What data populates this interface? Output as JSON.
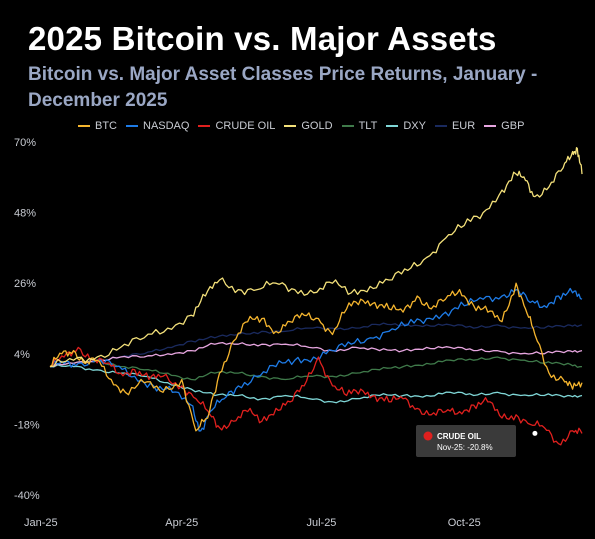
{
  "header": {
    "title": "2025 Bitcoin vs. Major Assets",
    "subtitle": "Bitcoin vs. Major Asset Classes Price Returns, January - December 2025"
  },
  "chart_data": {
    "type": "line",
    "title": "2025 Bitcoin vs. Major Assets",
    "subtitle": "Bitcoin vs. Major Asset Classes Price Returns, January - December 2025",
    "unit": "%",
    "ylim": [
      -40,
      70
    ],
    "yticks": [
      "70%",
      "48%",
      "26%",
      "4%",
      "-18%",
      "-40%"
    ],
    "ytick_values": [
      70,
      48,
      26,
      4,
      -18,
      -40
    ],
    "xticks": [
      "Jan-25",
      "Apr-25",
      "Jul-25",
      "Oct-25"
    ],
    "xtick_months": [
      0,
      3,
      6,
      9
    ],
    "xlim_months": [
      0,
      11.3
    ],
    "grid": false,
    "legend_position": "top",
    "series": [
      {
        "name": "BTC",
        "color": "#f5b52e",
        "points": [
          [
            0,
            0
          ],
          [
            0.25,
            4
          ],
          [
            0.5,
            5
          ],
          [
            0.75,
            1
          ],
          [
            1,
            2
          ],
          [
            1.3,
            -4
          ],
          [
            1.6,
            -8
          ],
          [
            2,
            -5
          ],
          [
            2.4,
            -8
          ],
          [
            2.8,
            -4
          ],
          [
            3.1,
            -20
          ],
          [
            3.35,
            -16
          ],
          [
            3.6,
            -2
          ],
          [
            3.9,
            8
          ],
          [
            4.2,
            14
          ],
          [
            4.5,
            15
          ],
          [
            4.8,
            11
          ],
          [
            5.1,
            14
          ],
          [
            5.4,
            16
          ],
          [
            5.7,
            15
          ],
          [
            6,
            10
          ],
          [
            6.3,
            18
          ],
          [
            6.6,
            21
          ],
          [
            6.9,
            20
          ],
          [
            7.2,
            18
          ],
          [
            7.5,
            17
          ],
          [
            7.8,
            22
          ],
          [
            8.1,
            18
          ],
          [
            8.4,
            21
          ],
          [
            8.7,
            24
          ],
          [
            9,
            19
          ],
          [
            9.3,
            17
          ],
          [
            9.6,
            14
          ],
          [
            9.9,
            26
          ],
          [
            10.1,
            18
          ],
          [
            10.3,
            10
          ],
          [
            10.6,
            -2
          ],
          [
            10.9,
            -4
          ],
          [
            11.1,
            -7
          ],
          [
            11.3,
            -5
          ]
        ]
      },
      {
        "name": "NASDAQ",
        "color": "#1e7be6",
        "points": [
          [
            0,
            0
          ],
          [
            0.3,
            1
          ],
          [
            0.6,
            1
          ],
          [
            1,
            2
          ],
          [
            1.4,
            0
          ],
          [
            1.8,
            -3
          ],
          [
            2.2,
            -6
          ],
          [
            2.6,
            -8
          ],
          [
            3,
            -12
          ],
          [
            3.2,
            -20
          ],
          [
            3.4,
            -14
          ],
          [
            3.7,
            -10
          ],
          [
            4,
            -6
          ],
          [
            4.4,
            -3
          ],
          [
            4.8,
            0
          ],
          [
            5.2,
            2
          ],
          [
            5.6,
            3
          ],
          [
            6,
            5
          ],
          [
            6.4,
            7
          ],
          [
            6.8,
            9
          ],
          [
            7.2,
            11
          ],
          [
            7.6,
            13
          ],
          [
            8,
            15
          ],
          [
            8.4,
            17
          ],
          [
            8.8,
            19
          ],
          [
            9.2,
            21
          ],
          [
            9.6,
            22
          ],
          [
            9.9,
            24
          ],
          [
            10.2,
            20
          ],
          [
            10.5,
            19
          ],
          [
            10.8,
            22
          ],
          [
            11.1,
            23
          ],
          [
            11.3,
            21
          ]
        ]
      },
      {
        "name": "CRUDE OIL",
        "color": "#e0201e",
        "points": [
          [
            0,
            0
          ],
          [
            0.3,
            3
          ],
          [
            0.6,
            6
          ],
          [
            0.9,
            2
          ],
          [
            1.2,
            1
          ],
          [
            1.5,
            -2
          ],
          [
            1.8,
            -1
          ],
          [
            2.1,
            -4
          ],
          [
            2.4,
            -3
          ],
          [
            2.8,
            -6
          ],
          [
            3.1,
            -10
          ],
          [
            3.4,
            -15
          ],
          [
            3.6,
            -19
          ],
          [
            3.9,
            -17
          ],
          [
            4.2,
            -14
          ],
          [
            4.5,
            -17
          ],
          [
            4.8,
            -13
          ],
          [
            5.1,
            -11
          ],
          [
            5.4,
            -6
          ],
          [
            5.7,
            3
          ],
          [
            6,
            -6
          ],
          [
            6.3,
            -9
          ],
          [
            6.6,
            -7
          ],
          [
            6.9,
            -9
          ],
          [
            7.2,
            -11
          ],
          [
            7.5,
            -10
          ],
          [
            7.8,
            -13
          ],
          [
            8.1,
            -15
          ],
          [
            8.4,
            -14
          ],
          [
            8.7,
            -14
          ],
          [
            9,
            -12
          ],
          [
            9.3,
            -11
          ],
          [
            9.6,
            -16
          ],
          [
            9.9,
            -15
          ],
          [
            10.2,
            -18
          ],
          [
            10.5,
            -19
          ],
          [
            10.8,
            -24
          ],
          [
            11.1,
            -20
          ],
          [
            11.3,
            -20.8
          ]
        ]
      },
      {
        "name": "GOLD",
        "color": "#f3e07a",
        "points": [
          [
            0,
            0
          ],
          [
            0.5,
            2
          ],
          [
            1,
            3
          ],
          [
            1.5,
            6
          ],
          [
            2,
            9
          ],
          [
            2.5,
            12
          ],
          [
            3,
            16
          ],
          [
            3.3,
            22
          ],
          [
            3.6,
            27
          ],
          [
            4,
            24
          ],
          [
            4.4,
            24
          ],
          [
            4.8,
            26
          ],
          [
            5.2,
            24
          ],
          [
            5.6,
            23
          ],
          [
            6,
            26
          ],
          [
            6.4,
            23
          ],
          [
            6.8,
            25
          ],
          [
            7.2,
            27
          ],
          [
            7.6,
            30
          ],
          [
            8,
            34
          ],
          [
            8.4,
            40
          ],
          [
            8.8,
            44
          ],
          [
            9.2,
            48
          ],
          [
            9.6,
            55
          ],
          [
            9.9,
            60
          ],
          [
            10.1,
            58
          ],
          [
            10.3,
            53
          ],
          [
            10.6,
            56
          ],
          [
            10.9,
            62
          ],
          [
            11.1,
            67
          ],
          [
            11.2,
            68
          ],
          [
            11.3,
            60
          ]
        ]
      },
      {
        "name": "TLT",
        "color": "#3f7a4a",
        "points": [
          [
            0,
            0
          ],
          [
            0.5,
            1
          ],
          [
            1,
            2
          ],
          [
            1.5,
            0
          ],
          [
            2,
            -1
          ],
          [
            2.5,
            -2
          ],
          [
            3,
            -4
          ],
          [
            3.5,
            -2
          ],
          [
            4,
            -2
          ],
          [
            4.5,
            -3
          ],
          [
            5,
            -4
          ],
          [
            5.5,
            -3
          ],
          [
            6,
            -3
          ],
          [
            6.5,
            -2
          ],
          [
            7,
            -1
          ],
          [
            7.5,
            0
          ],
          [
            8,
            1
          ],
          [
            8.5,
            2
          ],
          [
            9,
            2
          ],
          [
            9.5,
            3
          ],
          [
            10,
            2
          ],
          [
            10.5,
            1
          ],
          [
            11,
            1
          ],
          [
            11.3,
            0
          ]
        ]
      },
      {
        "name": "DXY",
        "color": "#7fd6d6",
        "points": [
          [
            0,
            0
          ],
          [
            0.5,
            0
          ],
          [
            1,
            -1
          ],
          [
            1.5,
            -2
          ],
          [
            2,
            -3
          ],
          [
            2.5,
            -5
          ],
          [
            3,
            -7
          ],
          [
            3.5,
            -9
          ],
          [
            4,
            -9
          ],
          [
            4.5,
            -10
          ],
          [
            5,
            -9
          ],
          [
            5.5,
            -10
          ],
          [
            6,
            -11
          ],
          [
            6.5,
            -10
          ],
          [
            7,
            -9
          ],
          [
            7.5,
            -9
          ],
          [
            8,
            -9
          ],
          [
            8.5,
            -8
          ],
          [
            9,
            -9
          ],
          [
            9.5,
            -8
          ],
          [
            10,
            -9
          ],
          [
            10.5,
            -9
          ],
          [
            11,
            -9
          ],
          [
            11.3,
            -9
          ]
        ]
      },
      {
        "name": "EUR",
        "color": "#1a2a5e",
        "points": [
          [
            0,
            0
          ],
          [
            0.5,
            1
          ],
          [
            1,
            2
          ],
          [
            1.5,
            3
          ],
          [
            2,
            4
          ],
          [
            2.5,
            6
          ],
          [
            3,
            8
          ],
          [
            3.5,
            9
          ],
          [
            4,
            10
          ],
          [
            4.5,
            11
          ],
          [
            5,
            11
          ],
          [
            5.5,
            12
          ],
          [
            6,
            12
          ],
          [
            6.5,
            12
          ],
          [
            7,
            13
          ],
          [
            7.5,
            13
          ],
          [
            8,
            13
          ],
          [
            8.5,
            13
          ],
          [
            9,
            12
          ],
          [
            9.5,
            13
          ],
          [
            10,
            12
          ],
          [
            10.5,
            12
          ],
          [
            11,
            13
          ],
          [
            11.3,
            13
          ]
        ]
      },
      {
        "name": "GBP",
        "color": "#e7a6e0",
        "points": [
          [
            0,
            0
          ],
          [
            0.5,
            1
          ],
          [
            1,
            2
          ],
          [
            1.5,
            3
          ],
          [
            2,
            3
          ],
          [
            2.5,
            4
          ],
          [
            3,
            5
          ],
          [
            3.5,
            7
          ],
          [
            4,
            7
          ],
          [
            4.5,
            7
          ],
          [
            5,
            7
          ],
          [
            5.5,
            6
          ],
          [
            6,
            5
          ],
          [
            6.5,
            6
          ],
          [
            7,
            5
          ],
          [
            7.5,
            5
          ],
          [
            8,
            6
          ],
          [
            8.5,
            6
          ],
          [
            9,
            5
          ],
          [
            9.5,
            5
          ],
          [
            10,
            4
          ],
          [
            10.5,
            4
          ],
          [
            11,
            5
          ],
          [
            11.3,
            5
          ]
        ]
      }
    ],
    "annotation": {
      "series": "CRUDE OIL",
      "label": "CRUDE OIL",
      "value_text": "Nov-25: -20.8%",
      "x": 10.3,
      "y": -20.8
    }
  }
}
